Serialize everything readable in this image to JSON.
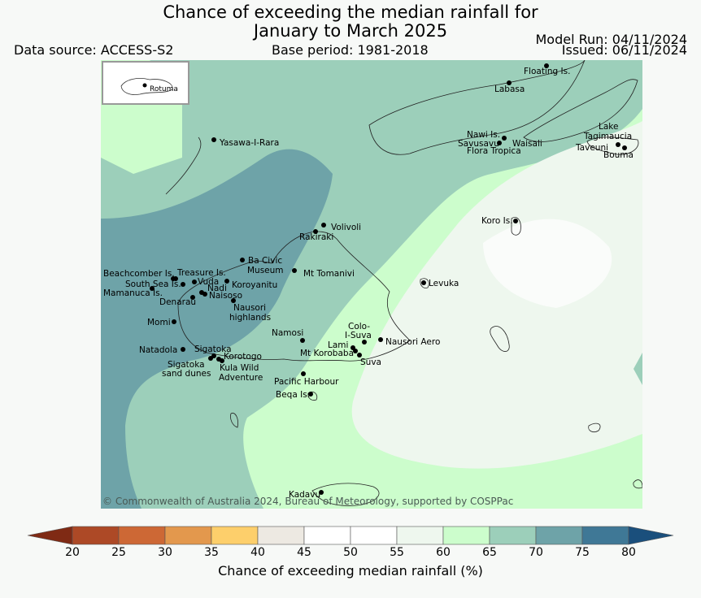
{
  "header": {
    "title_line1": "Chance of exceeding the median rainfall for",
    "title_line2": "January to March 2025",
    "data_source": "Data source: ACCESS-S2",
    "base_period": "Base period: 1981-2018",
    "model_run": "Model Run: 04/11/2024",
    "issued": "Issued: 06/11/2024"
  },
  "map": {
    "inset_label": "Rotuma",
    "copyright": "© Commonwealth of Australia 2024, Bureau of Meteorology, supported by COSPPac",
    "places": [
      "Floating Is.",
      "Labasa",
      "Yasawa-I-Rara",
      "Nawi Is.",
      "Savusavu",
      "Waisali",
      "Flora Tropica",
      "Lake",
      "Tagimaucia",
      "Taveuni",
      "Bouma",
      "Koro Is.",
      "Volivoli",
      "Rakiraki",
      "Ba Civic",
      "Museum",
      "Mt Tomanivi",
      "Beachcomber Is.",
      "Treasure Is.",
      "South Sea Is.",
      "Vuda",
      "Koroyanitu",
      "Nadi",
      "Mamanuca Is.",
      "Naisoso",
      "Denarau",
      "Nausori",
      "highlands",
      "Levuka",
      "Momi",
      "Colo-",
      "I-Suva",
      "Namosi",
      "Lami",
      "Nausori Aero",
      "Mt Korobaba",
      "Suva",
      "Natadola",
      "Sigatoka",
      "Korotogo",
      "Sigatoka",
      "sand dunes",
      "Kula Wild",
      "Adventure",
      "Pacific Harbour",
      "Beqa Is.",
      "Kadavu"
    ]
  },
  "colorbar": {
    "ticks": [
      "20",
      "25",
      "30",
      "35",
      "40",
      "45",
      "50",
      "55",
      "60",
      "65",
      "70",
      "75",
      "80"
    ],
    "colors": [
      "#7f2a14",
      "#ad4926",
      "#cd6835",
      "#e3984d",
      "#fdcf6b",
      "#ede9e2",
      "#ffffff",
      "#ffffff",
      "#eef7ee",
      "#ccfdcc",
      "#9ccfba",
      "#6ea3a8",
      "#3f7896",
      "#1a4f7c"
    ],
    "label": "Chance of exceeding median rainfall (%)"
  }
}
